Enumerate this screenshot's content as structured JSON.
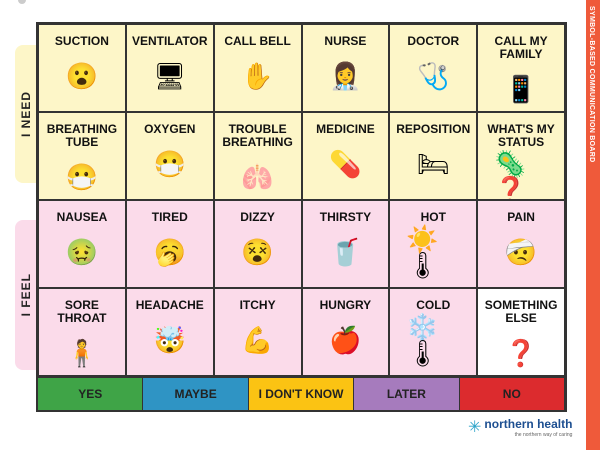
{
  "sidebar_title": "SYMBOL-BASED COMMUNICATION BOARD",
  "sections": {
    "need": "I NEED",
    "feel": "I FEEL"
  },
  "cells": [
    {
      "label": "SUCTION",
      "icon": "suction-photo",
      "g": "😮"
    },
    {
      "label": "VENTILATOR",
      "icon": "ventilator-photo",
      "g": "🖥"
    },
    {
      "label": "CALL BELL",
      "icon": "call-bell-photo",
      "g": "✋"
    },
    {
      "label": "NURSE",
      "icon": "nurse-photo",
      "g": "👩‍⚕️"
    },
    {
      "label": "DOCTOR",
      "icon": "doctor-photo",
      "g": "🩺"
    },
    {
      "label": "CALL MY FAMILY",
      "icon": "phone-icon",
      "g": "📱"
    },
    {
      "label": "BREATHING TUBE",
      "icon": "breathing-tube-icon",
      "g": "😷"
    },
    {
      "label": "OXYGEN",
      "icon": "oxygen-mask-photo",
      "g": "😷"
    },
    {
      "label": "TROUBLE BREATHING",
      "icon": "lungs-icon",
      "g": "🫁"
    },
    {
      "label": "MEDICINE",
      "icon": "medicine-photo",
      "g": "💊"
    },
    {
      "label": "REPOSITION",
      "icon": "reposition-photo",
      "g": "🛏"
    },
    {
      "label": "WHAT'S MY STATUS",
      "icon": "virus-question-icon",
      "g": "🦠❓"
    },
    {
      "label": "NAUSEA",
      "icon": "nausea-icon",
      "g": "🤢"
    },
    {
      "label": "TIRED",
      "icon": "tired-icon",
      "g": "🥱"
    },
    {
      "label": "DIZZY",
      "icon": "dizzy-icon",
      "g": "😵"
    },
    {
      "label": "THIRSTY",
      "icon": "water-photo",
      "g": "🥤"
    },
    {
      "label": "HOT",
      "icon": "hot-thermometer-icon",
      "g": "☀️🌡"
    },
    {
      "label": "PAIN",
      "icon": "pain-icon",
      "g": "🤕"
    },
    {
      "label": "SORE THROAT",
      "icon": "sore-throat-icon",
      "g": "🧍"
    },
    {
      "label": "HEADACHE",
      "icon": "headache-icon",
      "g": "🤯"
    },
    {
      "label": "ITCHY",
      "icon": "itchy-icon",
      "g": "💪"
    },
    {
      "label": "HUNGRY",
      "icon": "hungry-icon",
      "g": "🍎"
    },
    {
      "label": "COLD",
      "icon": "cold-thermometer-icon",
      "g": "❄️🌡"
    },
    {
      "label": "SOMETHING ELSE",
      "icon": "question-icon",
      "g": "❓"
    }
  ],
  "answers": [
    {
      "label": "YES",
      "color": "#3fa447"
    },
    {
      "label": "MAYBE",
      "color": "#2f94c4"
    },
    {
      "label": "I DON'T KNOW",
      "color": "#fbc313"
    },
    {
      "label": "LATER",
      "color": "#a67bbd"
    },
    {
      "label": "NO",
      "color": "#dc2b2e"
    }
  ],
  "logo": {
    "name": "northern health",
    "tagline": "the northern way of caring"
  }
}
